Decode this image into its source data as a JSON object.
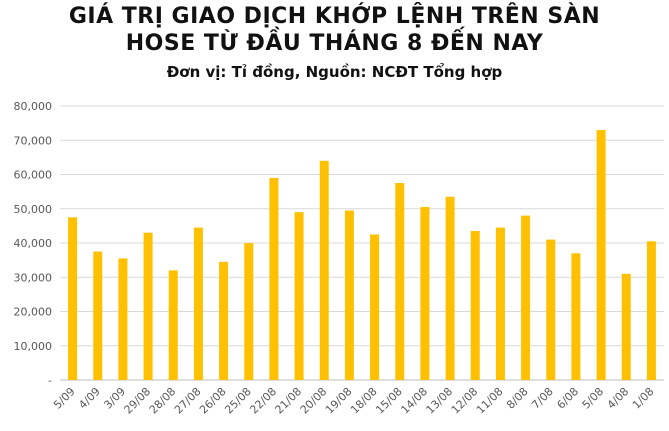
{
  "chart_data": {
    "type": "bar",
    "title_line1": "GIÁ TRỊ GIAO DỊCH KHỚP LỆNH TRÊN SÀN",
    "title_line2": "HOSE TỪ ĐẦU THÁNG 8 ĐẾN NAY",
    "subtitle": "Đơn vị: Tỉ đồng, Nguồn: NCĐT Tổng hợp",
    "xlabel": "",
    "ylabel": "",
    "ylim": [
      0,
      80000
    ],
    "yticks": [
      0,
      10000,
      20000,
      30000,
      40000,
      50000,
      60000,
      70000,
      80000
    ],
    "ytick_labels": [
      "-",
      "10,000",
      "20,000",
      "30,000",
      "40,000",
      "50,000",
      "60,000",
      "70,000",
      "80,000"
    ],
    "grid": true,
    "legend": false,
    "bar_color": "#FFC000",
    "categories": [
      "5/09",
      "4/09",
      "3/09",
      "29/08",
      "28/08",
      "27/08",
      "26/08",
      "25/08",
      "22/08",
      "21/08",
      "20/08",
      "19/08",
      "18/08",
      "15/08",
      "14/08",
      "13/08",
      "12/08",
      "11/08",
      "8/08",
      "7/08",
      "6/08",
      "5/08",
      "4/08",
      "1/08"
    ],
    "values": [
      47500,
      37500,
      35500,
      43000,
      32000,
      44500,
      34500,
      40000,
      59000,
      49000,
      64000,
      49500,
      42500,
      57500,
      50500,
      53500,
      43500,
      44500,
      48000,
      41000,
      37000,
      73000,
      31000,
      40500
    ]
  }
}
